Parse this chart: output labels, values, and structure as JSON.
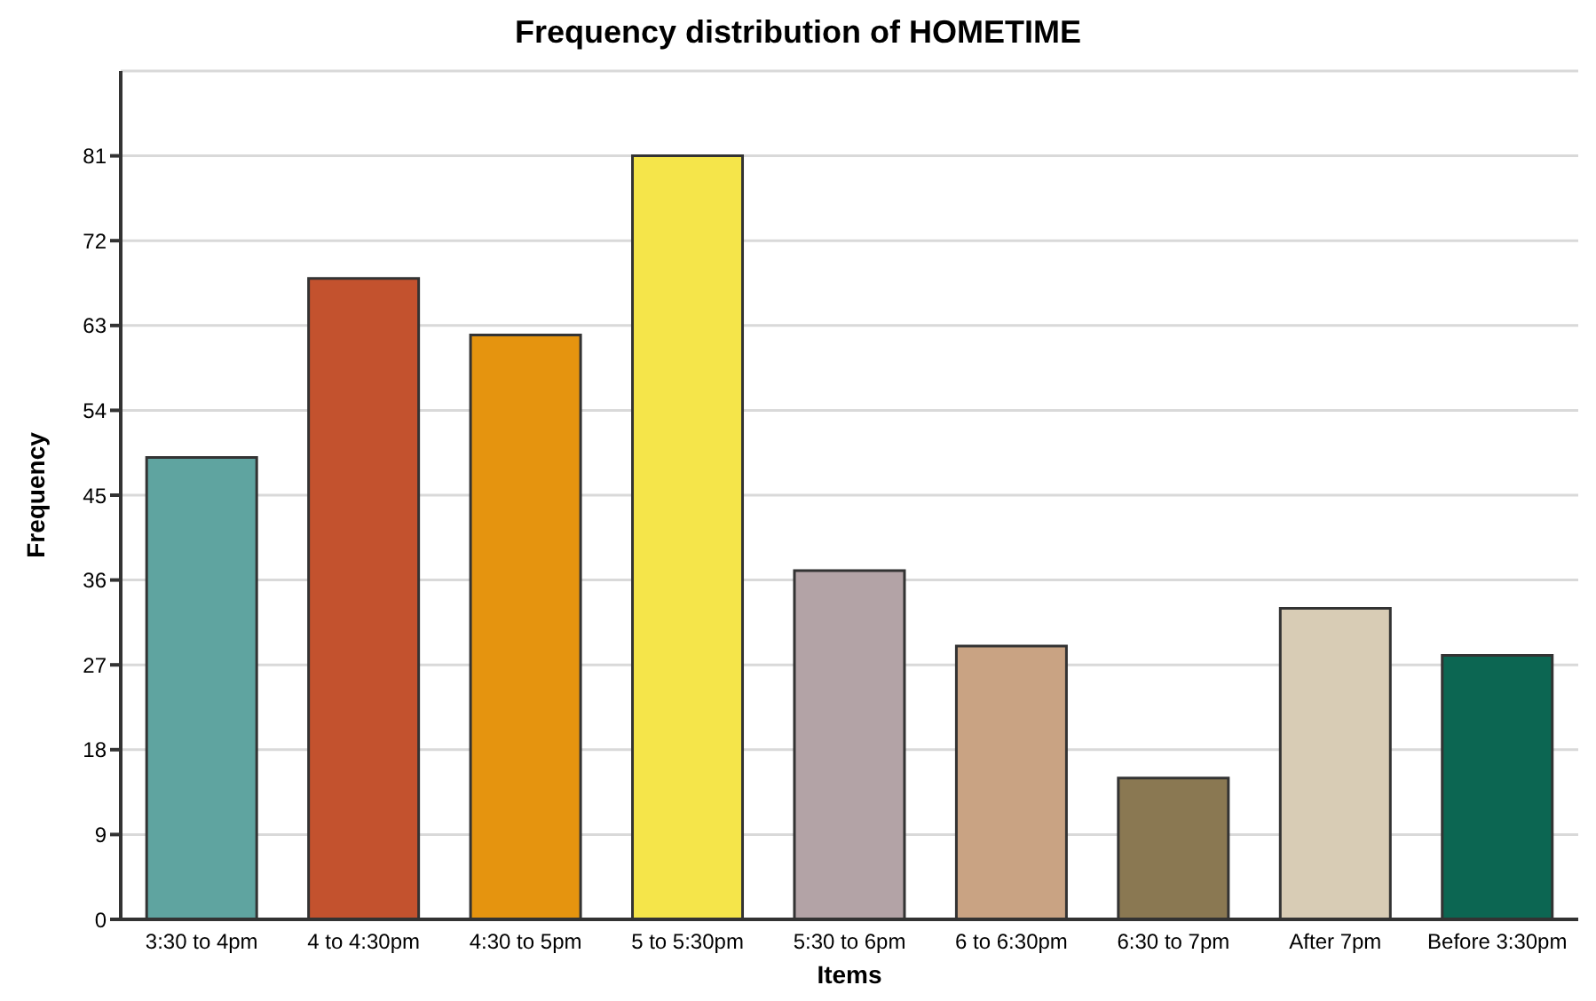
{
  "chart_data": {
    "type": "bar",
    "title": "Frequency distribution of HOMETIME",
    "xlabel": "Items",
    "ylabel": "Frequency",
    "categories": [
      "3:30 to 4pm",
      "4 to 4:30pm",
      "4:30 to 5pm",
      "5 to 5:30pm",
      "5:30 to 6pm",
      "6 to 6:30pm",
      "6:30 to 7pm",
      "After 7pm",
      "Before 3:30pm"
    ],
    "values": [
      49,
      68,
      62,
      81,
      37,
      29,
      15,
      33,
      28
    ],
    "colors": [
      "#5fa4a0",
      "#c3522e",
      "#e5940f",
      "#f5e54a",
      "#b3a3a6",
      "#c9a383",
      "#8a7852",
      "#d8ccb5",
      "#0c6652"
    ],
    "ylim": [
      0,
      90
    ],
    "yticks": [
      0,
      9,
      18,
      27,
      36,
      45,
      54,
      63,
      72,
      81
    ],
    "grid": "y"
  }
}
